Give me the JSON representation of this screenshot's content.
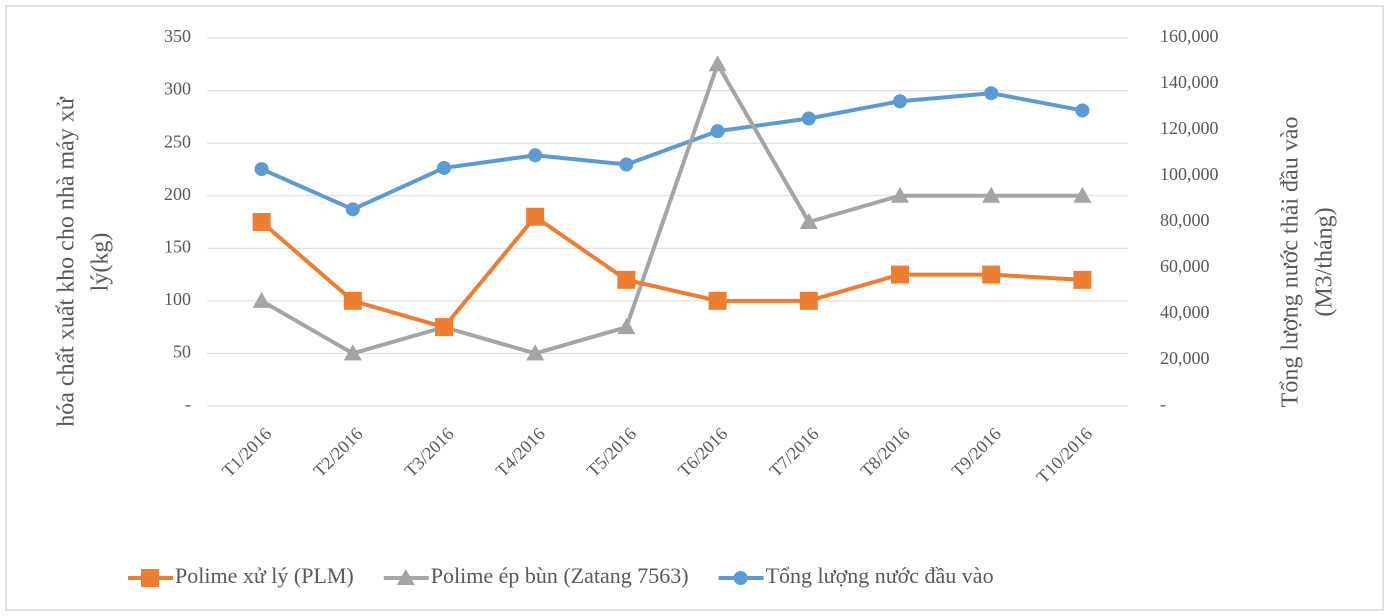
{
  "chart_data": {
    "type": "line",
    "ylabel": [
      "hóa chất xuất kho cho nhà máy xử",
      "lý(kg)"
    ],
    "y2label": [
      "Tổng lượng nước thải đầu vào",
      "(M3/tháng)"
    ],
    "categories": [
      "T1/2016",
      "T2/2016",
      "T3/2016",
      "T4/2016",
      "T5/2016",
      "T6/2016",
      "T7/2016",
      "T8/2016",
      "T9/2016",
      "T10/2016"
    ],
    "series": [
      {
        "name": "Polime xử lý (PLM)",
        "color": "#ED7D31",
        "marker": "square",
        "values": [
          175,
          100,
          75,
          180,
          120,
          100,
          100,
          125,
          125,
          120
        ]
      },
      {
        "name": "Polime ép bùn (Zatang 7563)",
        "color": "#A5A5A5",
        "marker": "triangle",
        "values": [
          100,
          50,
          75,
          50,
          75,
          325,
          175,
          200,
          200,
          200
        ]
      },
      {
        "name": "Tổng lượng nước đầu vào",
        "color": "#5B9BD5",
        "marker": "circle",
        "axis": "y2",
        "values": [
          103000,
          85500,
          103500,
          109000,
          105000,
          119500,
          125000,
          132500,
          136000,
          128500
        ]
      }
    ],
    "ylim": [
      0,
      350
    ],
    "yticks": [
      {
        "value": 0,
        "label": "-"
      },
      50,
      100,
      150,
      200,
      250,
      300,
      350
    ],
    "y2lim": [
      0,
      160000
    ],
    "y2ticks": [
      {
        "value": 0,
        "label": "-"
      },
      {
        "value": 20000,
        "label": "20,000"
      },
      {
        "value": 40000,
        "label": "40,000"
      },
      {
        "value": 60000,
        "label": "60,000"
      },
      {
        "value": 80000,
        "label": "80,000"
      },
      {
        "value": 100000,
        "label": "100,000"
      },
      {
        "value": 120000,
        "label": "120,000"
      },
      {
        "value": 140000,
        "label": "140,000"
      },
      {
        "value": 160000,
        "label": "160,000"
      }
    ],
    "grid": true,
    "legend": "bottom"
  }
}
